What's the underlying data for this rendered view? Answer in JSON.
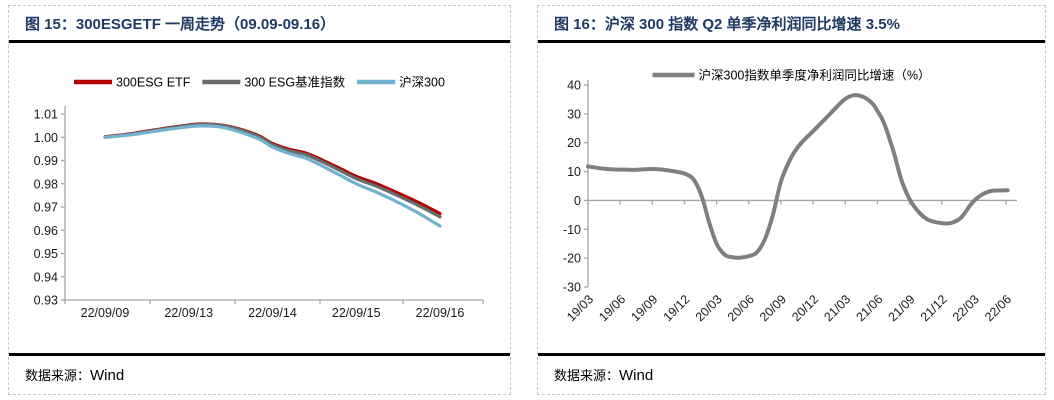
{
  "panels": [
    {
      "title": "图 15：300ESGETF 一周走势（09.09-09.16）",
      "source_label": "数据来源：",
      "source_value": "Wind",
      "chart_data": {
        "type": "line",
        "x_labels": [
          "22/09/09",
          "22/09/13",
          "22/09/14",
          "22/09/15",
          "22/09/16"
        ],
        "ylim": [
          0.93,
          1.01
        ],
        "y_ticks": [
          "1.01",
          "1.00",
          "0.99",
          "0.98",
          "0.97",
          "0.96",
          "0.95",
          "0.94",
          "0.93"
        ],
        "grid": false,
        "legend_position": "top",
        "series": [
          {
            "name": "300ESG ETF",
            "color": "#b00000",
            "points": [
              [
                0,
                1.0002
              ],
              [
                0.3,
                1.0015
              ],
              [
                0.6,
                1.0032
              ],
              [
                0.9,
                1.0048
              ],
              [
                1.15,
                1.0057
              ],
              [
                1.4,
                1.0052
              ],
              [
                1.65,
                1.0031
              ],
              [
                1.85,
                1.0004
              ],
              [
                2.0,
                0.9973
              ],
              [
                2.2,
                0.9948
              ],
              [
                2.4,
                0.9932
              ],
              [
                2.6,
                0.9901
              ],
              [
                2.8,
                0.9867
              ],
              [
                3.0,
                0.9832
              ],
              [
                3.25,
                0.9799
              ],
              [
                3.5,
                0.976
              ],
              [
                3.75,
                0.9718
              ],
              [
                4.0,
                0.9672
              ]
            ]
          },
          {
            "name": "300 ESG基准指数",
            "color": "#6b6b6b",
            "points": [
              [
                0,
                1.0
              ],
              [
                0.3,
                1.0013
              ],
              [
                0.6,
                1.003
              ],
              [
                0.9,
                1.0046
              ],
              [
                1.15,
                1.0055
              ],
              [
                1.4,
                1.005
              ],
              [
                1.65,
                1.0028
              ],
              [
                1.85,
                1.0
              ],
              [
                2.0,
                0.9968
              ],
              [
                2.2,
                0.9942
              ],
              [
                2.4,
                0.9925
              ],
              [
                2.6,
                0.9893
              ],
              [
                2.8,
                0.9858
              ],
              [
                3.0,
                0.9822
              ],
              [
                3.25,
                0.9788
              ],
              [
                3.5,
                0.9748
              ],
              [
                3.75,
                0.9705
              ],
              [
                4.0,
                0.9658
              ]
            ]
          },
          {
            "name": "沪深300",
            "color": "#72b2cf",
            "points": [
              [
                0,
                1.0
              ],
              [
                0.3,
                1.001
              ],
              [
                0.6,
                1.0026
              ],
              [
                0.9,
                1.0041
              ],
              [
                1.15,
                1.0049
              ],
              [
                1.4,
                1.0043
              ],
              [
                1.65,
                1.0018
              ],
              [
                1.85,
                0.999
              ],
              [
                2.0,
                0.9958
              ],
              [
                2.2,
                0.993
              ],
              [
                2.4,
                0.991
              ],
              [
                2.6,
                0.9875
              ],
              [
                2.8,
                0.9838
              ],
              [
                3.0,
                0.98
              ],
              [
                3.25,
                0.9762
              ],
              [
                3.5,
                0.972
              ],
              [
                3.75,
                0.9672
              ],
              [
                4.0,
                0.9618
              ]
            ]
          }
        ]
      }
    },
    {
      "title": "图 16：沪深 300 指数 Q2 单季净利润同比增速 3.5%",
      "source_label": "数据来源：",
      "source_value": "Wind",
      "chart_data": {
        "type": "line",
        "x_labels": [
          "19/03",
          "19/06",
          "19/09",
          "19/12",
          "20/03",
          "20/06",
          "20/09",
          "20/12",
          "21/03",
          "21/06",
          "21/09",
          "21/12",
          "22/03",
          "22/06"
        ],
        "ylim": [
          -30,
          40
        ],
        "y_ticks": [
          "40",
          "30",
          "20",
          "10",
          "0",
          "-10",
          "-20",
          "-30"
        ],
        "grid": false,
        "zero_axis": true,
        "legend_position": "top",
        "series": [
          {
            "name": "沪深300指数单季度净利润同比增速（%）",
            "color": "#7f7f7f",
            "points": [
              [
                0,
                11.8
              ],
              [
                0.5,
                11.0
              ],
              [
                1,
                10.7
              ],
              [
                1.5,
                10.6
              ],
              [
                2,
                10.9
              ],
              [
                2.5,
                10.4
              ],
              [
                3,
                9.3
              ],
              [
                3.3,
                7.0
              ],
              [
                3.55,
                1.0
              ],
              [
                3.75,
                -7.0
              ],
              [
                4,
                -15.0
              ],
              [
                4.25,
                -18.8
              ],
              [
                4.5,
                -19.7
              ],
              [
                4.75,
                -19.8
              ],
              [
                5,
                -19.3
              ],
              [
                5.25,
                -18.0
              ],
              [
                5.5,
                -13.5
              ],
              [
                5.75,
                -5.0
              ],
              [
                6,
                6.5
              ],
              [
                6.3,
                14.5
              ],
              [
                6.6,
                19.5
              ],
              [
                7,
                24.0
              ],
              [
                7.4,
                28.5
              ],
              [
                7.7,
                32.0
              ],
              [
                8,
                35.2
              ],
              [
                8.3,
                36.5
              ],
              [
                8.6,
                35.7
              ],
              [
                8.85,
                33.5
              ],
              [
                9,
                31.0
              ],
              [
                9.2,
                27.0
              ],
              [
                9.5,
                17.0
              ],
              [
                9.75,
                7.0
              ],
              [
                10,
                0.5
              ],
              [
                10.3,
                -4.2
              ],
              [
                10.6,
                -6.8
              ],
              [
                11,
                -7.9
              ],
              [
                11.3,
                -7.8
              ],
              [
                11.6,
                -6.0
              ],
              [
                11.9,
                -1.5
              ],
              [
                12.1,
                0.8
              ],
              [
                12.35,
                2.6
              ],
              [
                12.6,
                3.4
              ],
              [
                13.05,
                3.5
              ]
            ]
          }
        ]
      }
    }
  ]
}
